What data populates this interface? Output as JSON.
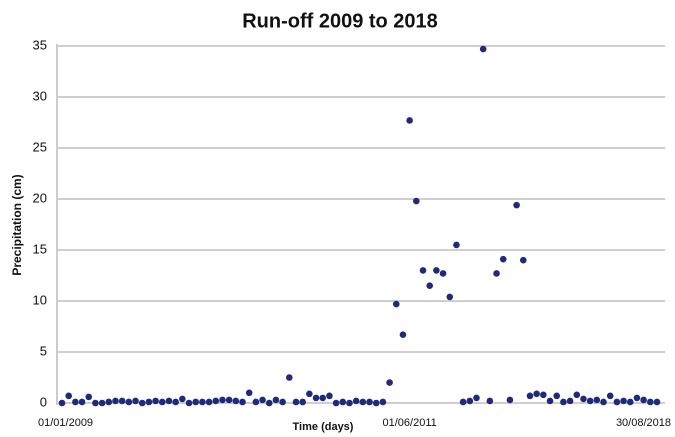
{
  "chart_data": {
    "type": "scatter",
    "title": "Run-off 2009 to 2018",
    "x_label": "Time (days)",
    "y_label": "Precipitation (cm)",
    "categories": [
      "01/01/2009",
      null,
      null,
      null,
      null,
      null,
      null,
      null,
      null,
      null,
      null,
      null,
      null,
      null,
      null,
      null,
      null,
      null,
      null,
      null,
      null,
      null,
      null,
      null,
      null,
      null,
      null,
      null,
      null,
      null,
      null,
      null,
      null,
      null,
      null,
      null,
      null,
      null,
      null,
      null,
      null,
      null,
      null,
      null,
      null,
      null,
      null,
      null,
      null,
      null,
      null,
      null,
      "01/06/2011",
      null,
      null,
      null,
      null,
      null,
      null,
      null,
      null,
      null,
      null,
      null,
      null,
      null,
      null,
      null,
      null,
      null,
      null,
      null,
      null,
      null,
      null,
      null,
      null,
      null,
      null,
      null,
      null,
      null,
      null,
      null,
      null,
      null,
      null,
      null,
      null,
      "30/08/2018"
    ],
    "values": [
      0,
      0.7,
      0.1,
      0.1,
      0.6,
      0,
      0,
      0.1,
      0.2,
      0.2,
      0.1,
      0.2,
      0,
      0.1,
      0.2,
      0.1,
      0.2,
      0.1,
      0.4,
      0,
      0.1,
      0.1,
      0.1,
      0.2,
      0.3,
      0.3,
      0.2,
      0.1,
      1.0,
      0.1,
      0.3,
      0,
      0.3,
      0.1,
      2.5,
      0.1,
      0.1,
      0.9,
      0.5,
      0.5,
      0.7,
      0,
      0.1,
      0,
      0.2,
      0.1,
      0.1,
      0,
      0.1,
      2.0,
      9.7,
      6.7,
      27.7,
      19.8,
      13.0,
      11.5,
      13.0,
      12.7,
      10.4,
      15.5,
      0.1,
      0.2,
      0.5,
      34.7,
      0.2,
      12.7,
      14.1,
      0.3,
      19.4,
      14.0,
      0.7,
      0.9,
      0.8,
      0.2,
      0.7,
      0.1,
      0.2,
      0.8,
      0.4,
      0.2,
      0.3,
      0.1,
      0.7,
      0.1,
      0.2,
      0.1,
      0.5,
      0.3,
      0.1,
      0.1
    ],
    "color": "#1f2a7a",
    "ylim": [
      0,
      35
    ],
    "yticks": [
      0,
      5,
      10,
      15,
      20,
      25,
      30,
      35
    ],
    "grid": true
  }
}
